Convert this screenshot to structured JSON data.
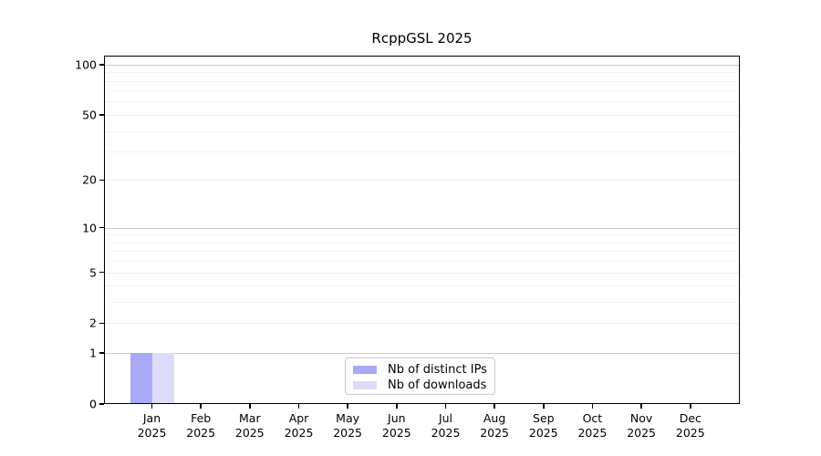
{
  "figure": {
    "title": "RcppGSL 2025"
  },
  "chart_data": {
    "type": "bar",
    "title": "RcppGSL 2025",
    "categories": [
      "Jan",
      "Feb",
      "Mar",
      "Apr",
      "May",
      "Jun",
      "Jul",
      "Aug",
      "Sep",
      "Oct",
      "Nov",
      "Dec"
    ],
    "category_year": "2025",
    "series": [
      {
        "name": "Nb of distinct IPs",
        "color": "#a9a9f7",
        "values": [
          1,
          0,
          0,
          0,
          0,
          0,
          0,
          0,
          0,
          0,
          0,
          0
        ]
      },
      {
        "name": "Nb of downloads",
        "color": "#dcdcf8",
        "values": [
          1,
          0,
          0,
          0,
          0,
          0,
          0,
          0,
          0,
          0,
          0,
          0
        ]
      }
    ],
    "xlabel": "",
    "ylabel": "",
    "y_scale": "log1p",
    "ylim": [
      0,
      113
    ],
    "y_ticks": [
      0,
      1,
      2,
      5,
      10,
      20,
      50,
      100
    ],
    "y_minor_gridlines": [
      3,
      4,
      6,
      7,
      8,
      9,
      30,
      40,
      60,
      70,
      80,
      90
    ],
    "y_emphasized_gridlines": [
      1,
      10,
      100
    ],
    "grid": true,
    "legend_position": "bottom-center"
  },
  "colors": {
    "background": "#ffffff",
    "axis": "#000000",
    "text": "#000000",
    "grid_major": "#c9c9c9",
    "grid_mid": "#e9e9e9",
    "grid_minor": "#f4f4f4",
    "legend_border": "#c9c9c9"
  }
}
